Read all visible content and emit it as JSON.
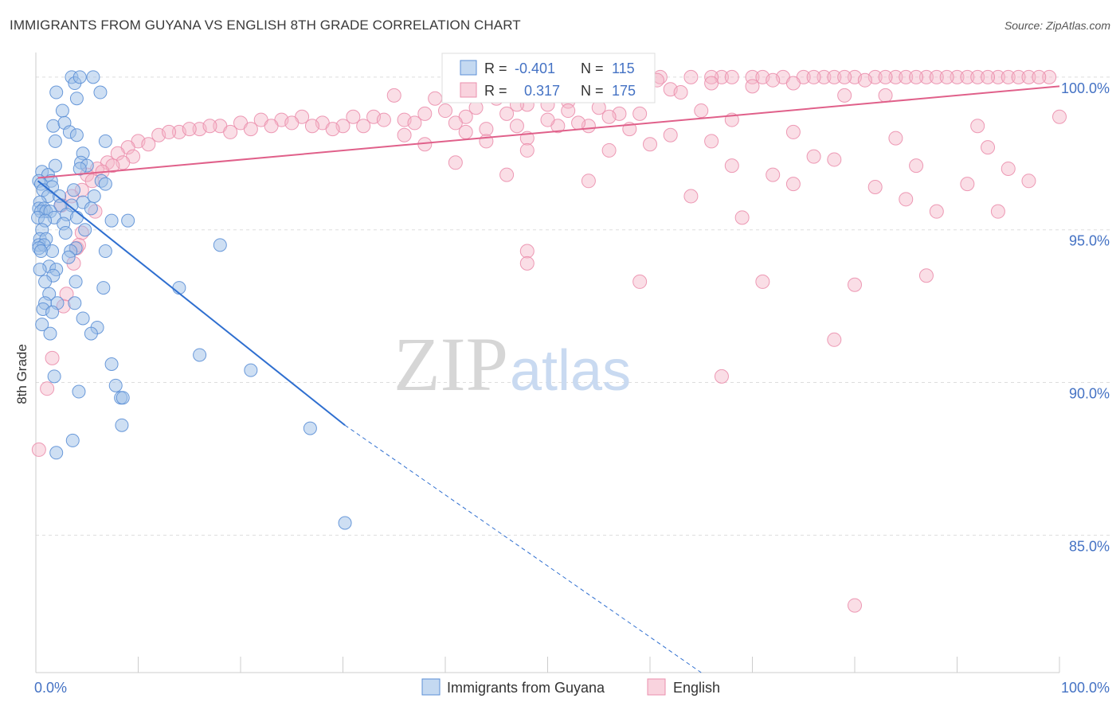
{
  "header": {
    "title": "IMMIGRANTS FROM GUYANA VS ENGLISH 8TH GRADE CORRELATION CHART",
    "source": "Source: ZipAtlas.com"
  },
  "watermark": {
    "zip": "ZIP",
    "atlas": "atlas"
  },
  "stats": {
    "r_label": "R =",
    "n_label": "N =",
    "guyana": {
      "r": "-0.401",
      "n": "115"
    },
    "english": {
      "r": "0.317",
      "n": "175"
    }
  },
  "colors": {
    "guyana_fill": "#9dbfe8",
    "guyana_stroke": "#5b8fd6",
    "guyana_line": "#2f6fd0",
    "english_fill": "#f5b6c8",
    "english_stroke": "#eb8fad",
    "english_line": "#e0608a",
    "tick_text": "#4472c4",
    "grid": "#dddddd"
  },
  "chart_data": {
    "type": "scatter",
    "title": "IMMIGRANTS FROM GUYANA VS ENGLISH 8TH GRADE CORRELATION CHART",
    "xlabel": "",
    "ylabel": "8th Grade",
    "xlim": [
      0,
      100
    ],
    "ylim": [
      80.5,
      100.7
    ],
    "x_tick_labels": [
      "0.0%",
      "100.0%"
    ],
    "y_ticks": [
      85,
      90,
      95,
      100
    ],
    "y_tick_labels": [
      "85.0%",
      "90.0%",
      "95.0%",
      "100.0%"
    ],
    "grid": "horizontal dashed",
    "legend_position": "bottom",
    "series": [
      {
        "name": "Immigrants from Guyana",
        "r": -0.401,
        "n": 115,
        "trend": {
          "x": [
            0.2,
            30.2
          ],
          "y": [
            96.6,
            88.6
          ],
          "dashed_extension": {
            "x": [
              30.2,
              65
            ],
            "y": [
              88.6,
              80.5
            ]
          }
        },
        "points": [
          [
            3.5,
            100
          ],
          [
            5.6,
            100
          ],
          [
            3.8,
            99.8
          ],
          [
            4.3,
            100
          ],
          [
            4.0,
            99.3
          ],
          [
            2.0,
            99.5
          ],
          [
            6.3,
            99.5
          ],
          [
            2.6,
            98.9
          ],
          [
            1.7,
            98.4
          ],
          [
            2.8,
            98.5
          ],
          [
            3.3,
            98.2
          ],
          [
            1.9,
            97.9
          ],
          [
            4.0,
            98.1
          ],
          [
            6.8,
            97.9
          ],
          [
            4.6,
            97.5
          ],
          [
            4.4,
            97.2
          ],
          [
            5.0,
            97.1
          ],
          [
            1.9,
            97.1
          ],
          [
            4.3,
            97.0
          ],
          [
            0.6,
            96.9
          ],
          [
            1.2,
            96.8
          ],
          [
            0.3,
            96.6
          ],
          [
            1.5,
            96.6
          ],
          [
            6.4,
            96.6
          ],
          [
            0.5,
            96.5
          ],
          [
            1.6,
            96.4
          ],
          [
            6.8,
            96.5
          ],
          [
            0.7,
            96.3
          ],
          [
            3.7,
            96.3
          ],
          [
            1.2,
            96.1
          ],
          [
            2.3,
            96.1
          ],
          [
            5.7,
            96.1
          ],
          [
            0.4,
            95.9
          ],
          [
            4.6,
            95.9
          ],
          [
            3.5,
            95.8
          ],
          [
            0.3,
            95.7
          ],
          [
            0.8,
            95.7
          ],
          [
            2.4,
            95.8
          ],
          [
            5.4,
            95.7
          ],
          [
            0.5,
            95.6
          ],
          [
            1.0,
            95.6
          ],
          [
            1.4,
            95.6
          ],
          [
            3.0,
            95.5
          ],
          [
            4.0,
            95.4
          ],
          [
            0.2,
            95.4
          ],
          [
            1.8,
            95.4
          ],
          [
            0.9,
            95.3
          ],
          [
            7.4,
            95.3
          ],
          [
            2.7,
            95.2
          ],
          [
            9.0,
            95.3
          ],
          [
            0.6,
            95.0
          ],
          [
            2.9,
            94.9
          ],
          [
            4.8,
            95.0
          ],
          [
            0.4,
            94.7
          ],
          [
            1.0,
            94.7
          ],
          [
            0.3,
            94.5
          ],
          [
            0.8,
            94.5
          ],
          [
            3.9,
            94.4
          ],
          [
            6.8,
            94.3
          ],
          [
            0.3,
            94.4
          ],
          [
            1.6,
            94.3
          ],
          [
            0.5,
            94.3
          ],
          [
            3.4,
            94.3
          ],
          [
            18.0,
            94.5
          ],
          [
            3.2,
            94.1
          ],
          [
            1.3,
            93.8
          ],
          [
            0.4,
            93.7
          ],
          [
            2.0,
            93.7
          ],
          [
            1.7,
            93.5
          ],
          [
            0.9,
            93.3
          ],
          [
            3.9,
            93.3
          ],
          [
            6.6,
            93.1
          ],
          [
            14.0,
            93.1
          ],
          [
            1.3,
            92.9
          ],
          [
            0.9,
            92.6
          ],
          [
            2.1,
            92.6
          ],
          [
            3.8,
            92.6
          ],
          [
            0.7,
            92.4
          ],
          [
            1.6,
            92.3
          ],
          [
            4.6,
            92.1
          ],
          [
            0.6,
            91.9
          ],
          [
            6.0,
            91.8
          ],
          [
            1.4,
            91.6
          ],
          [
            5.4,
            91.6
          ],
          [
            16.0,
            90.9
          ],
          [
            7.4,
            90.6
          ],
          [
            21.0,
            90.4
          ],
          [
            1.8,
            90.2
          ],
          [
            7.8,
            89.9
          ],
          [
            4.2,
            89.7
          ],
          [
            8.3,
            89.5
          ],
          [
            8.5,
            89.5
          ],
          [
            8.4,
            88.6
          ],
          [
            26.8,
            88.5
          ],
          [
            3.6,
            88.1
          ],
          [
            2.0,
            87.7
          ],
          [
            30.2,
            85.4
          ]
        ]
      },
      {
        "name": "English",
        "r": 0.317,
        "n": 175,
        "trend": {
          "x": [
            0.2,
            100
          ],
          "y": [
            96.7,
            99.7
          ]
        },
        "points": [
          [
            61,
            100
          ],
          [
            64,
            100
          ],
          [
            67,
            100
          ],
          [
            68,
            100
          ],
          [
            70,
            100
          ],
          [
            73,
            100
          ],
          [
            75,
            100
          ],
          [
            77,
            100
          ],
          [
            78,
            100
          ],
          [
            80,
            100
          ],
          [
            82,
            100
          ],
          [
            84,
            100
          ],
          [
            85,
            100
          ],
          [
            87,
            100
          ],
          [
            88,
            100
          ],
          [
            90,
            100
          ],
          [
            91,
            100
          ],
          [
            92,
            100
          ],
          [
            94,
            100
          ],
          [
            95,
            100
          ],
          [
            96,
            100
          ],
          [
            97,
            100
          ],
          [
            99,
            100
          ],
          [
            66,
            100
          ],
          [
            71,
            100
          ],
          [
            76,
            100
          ],
          [
            79,
            100
          ],
          [
            83,
            100
          ],
          [
            86,
            100
          ],
          [
            89,
            100
          ],
          [
            93,
            100
          ],
          [
            98,
            100
          ],
          [
            72,
            99.9
          ],
          [
            81,
            99.9
          ],
          [
            60.7,
            99.9
          ],
          [
            74,
            99.8
          ],
          [
            62,
            99.6
          ],
          [
            35,
            99.4
          ],
          [
            39,
            99.3
          ],
          [
            45,
            99.3
          ],
          [
            52,
            99.2
          ],
          [
            79,
            99.4
          ],
          [
            83,
            99.4
          ],
          [
            50,
            99.1
          ],
          [
            55,
            99.0
          ],
          [
            43,
            99.0
          ],
          [
            48,
            99.1
          ],
          [
            40,
            98.9
          ],
          [
            31,
            98.7
          ],
          [
            33,
            98.7
          ],
          [
            36,
            98.6
          ],
          [
            38,
            98.8
          ],
          [
            42,
            98.7
          ],
          [
            46,
            98.8
          ],
          [
            57,
            98.8
          ],
          [
            65,
            98.9
          ],
          [
            68,
            98.6
          ],
          [
            26,
            98.7
          ],
          [
            28,
            98.5
          ],
          [
            30,
            98.4
          ],
          [
            32,
            98.4
          ],
          [
            34,
            98.6
          ],
          [
            37,
            98.5
          ],
          [
            41,
            98.5
          ],
          [
            44,
            98.3
          ],
          [
            47,
            98.4
          ],
          [
            51,
            98.4
          ],
          [
            54,
            98.4
          ],
          [
            56,
            98.7
          ],
          [
            59,
            98.8
          ],
          [
            24,
            98.6
          ],
          [
            22,
            98.6
          ],
          [
            20,
            98.5
          ],
          [
            18,
            98.4
          ],
          [
            16,
            98.3
          ],
          [
            14,
            98.2
          ],
          [
            12,
            98.1
          ],
          [
            10,
            97.9
          ],
          [
            9,
            97.7
          ],
          [
            8,
            97.5
          ],
          [
            7,
            97.2
          ],
          [
            6,
            97.0
          ],
          [
            5,
            96.8
          ],
          [
            19,
            98.2
          ],
          [
            21,
            98.3
          ],
          [
            23,
            98.4
          ],
          [
            25,
            98.5
          ],
          [
            27,
            98.4
          ],
          [
            29,
            98.3
          ],
          [
            15,
            98.3
          ],
          [
            17,
            98.4
          ],
          [
            13,
            98.2
          ],
          [
            11,
            97.8
          ],
          [
            9.5,
            97.4
          ],
          [
            8.5,
            97.2
          ],
          [
            7.5,
            97.1
          ],
          [
            6.5,
            96.9
          ],
          [
            5.5,
            96.6
          ],
          [
            4.5,
            96.3
          ],
          [
            3.5,
            96.1
          ],
          [
            2.5,
            95.8
          ],
          [
            50,
            98.6
          ],
          [
            53,
            98.5
          ],
          [
            36,
            98.1
          ],
          [
            42,
            98.2
          ],
          [
            48,
            98.0
          ],
          [
            62,
            98.1
          ],
          [
            74,
            98.2
          ],
          [
            84,
            98.0
          ],
          [
            92,
            98.4
          ],
          [
            58,
            98.3
          ],
          [
            38,
            97.8
          ],
          [
            44,
            97.9
          ],
          [
            56,
            97.6
          ],
          [
            66,
            97.9
          ],
          [
            76,
            97.4
          ],
          [
            86,
            97.1
          ],
          [
            93,
            97.7
          ],
          [
            100,
            98.7
          ],
          [
            41,
            97.2
          ],
          [
            48,
            97.6
          ],
          [
            60,
            97.8
          ],
          [
            68,
            97.1
          ],
          [
            78,
            97.3
          ],
          [
            95,
            97.0
          ],
          [
            72,
            96.8
          ],
          [
            82,
            96.4
          ],
          [
            91,
            96.5
          ],
          [
            46,
            96.8
          ],
          [
            54,
            96.6
          ],
          [
            64,
            96.1
          ],
          [
            74,
            96.5
          ],
          [
            85,
            96.0
          ],
          [
            97,
            96.6
          ],
          [
            69,
            95.4
          ],
          [
            88,
            95.6
          ],
          [
            71,
            93.3
          ],
          [
            94,
            95.6
          ],
          [
            48,
            94.3
          ],
          [
            48,
            93.9
          ],
          [
            59,
            93.3
          ],
          [
            87,
            93.5
          ],
          [
            80,
            93.2
          ],
          [
            78,
            91.4
          ],
          [
            67,
            90.2
          ],
          [
            4,
            94.4
          ],
          [
            3.7,
            93.9
          ],
          [
            2.7,
            92.5
          ],
          [
            1.6,
            90.8
          ],
          [
            1.1,
            89.8
          ],
          [
            0.3,
            87.8
          ],
          [
            4.5,
            94.9
          ],
          [
            80,
            82.7
          ],
          [
            3.0,
            92.9
          ],
          [
            5.8,
            95.6
          ],
          [
            4.2,
            94.5
          ],
          [
            58,
            99.6
          ],
          [
            47,
            99.1
          ],
          [
            52,
            98.9
          ],
          [
            63,
            99.5
          ],
          [
            70,
            99.7
          ],
          [
            66,
            99.8
          ]
        ]
      }
    ]
  },
  "legend": {
    "items": [
      {
        "label": "Immigrants from Guyana"
      },
      {
        "label": "English"
      }
    ]
  }
}
